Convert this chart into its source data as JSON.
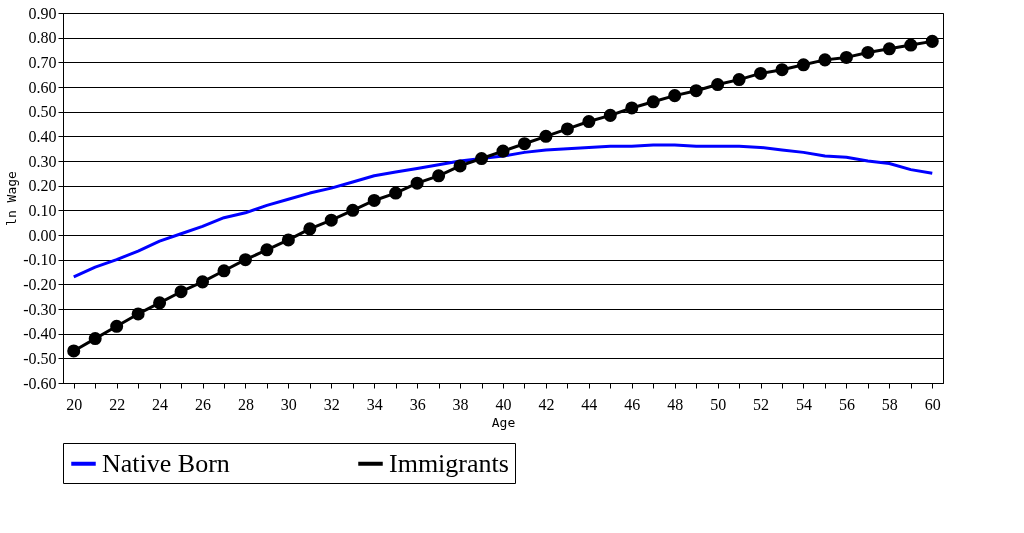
{
  "chart_data": {
    "type": "line",
    "xlabel": "Age",
    "ylabel": "ln Wage",
    "categories": [
      "20",
      null,
      "22",
      null,
      "24",
      null,
      "26",
      null,
      "28",
      null,
      "30",
      null,
      "32",
      null,
      "34",
      null,
      "36",
      null,
      "38",
      null,
      "40",
      null,
      "42",
      null,
      "44",
      null,
      "46",
      null,
      "48",
      null,
      "50",
      null,
      "52",
      null,
      "54",
      null,
      "56",
      null,
      "58",
      null,
      "60"
    ],
    "series": [
      {
        "name": "Native Born",
        "color": "#0000ff",
        "marker": "none",
        "values": [
          -0.17,
          -0.13,
          -0.1,
          -0.065,
          -0.025,
          0.005,
          0.035,
          0.07,
          0.09,
          0.12,
          0.145,
          0.17,
          0.19,
          0.215,
          0.24,
          0.255,
          0.27,
          0.285,
          0.3,
          0.31,
          0.32,
          0.335,
          0.345,
          0.35,
          0.355,
          0.36,
          0.36,
          0.365,
          0.365,
          0.36,
          0.36,
          0.36,
          0.355,
          0.345,
          0.335,
          0.32,
          0.315,
          0.3,
          0.29,
          0.265,
          0.25
        ]
      },
      {
        "name": "Immigrants",
        "color": "#000000",
        "marker": "circle",
        "values": [
          -0.47,
          -0.42,
          -0.37,
          -0.32,
          -0.275,
          -0.23,
          -0.19,
          -0.145,
          -0.1,
          -0.06,
          -0.02,
          0.025,
          0.06,
          0.1,
          0.14,
          0.17,
          0.21,
          0.24,
          0.28,
          0.31,
          0.34,
          0.37,
          0.4,
          0.43,
          0.46,
          0.485,
          0.515,
          0.54,
          0.565,
          0.585,
          0.61,
          0.63,
          0.655,
          0.67,
          0.69,
          0.71,
          0.72,
          0.74,
          0.755,
          0.77,
          0.785
        ]
      }
    ],
    "ylim": [
      -0.6,
      0.9
    ],
    "yticks": [
      {
        "value": -0.6,
        "label": "-0.60"
      },
      {
        "value": -0.5,
        "label": "-0.50"
      },
      {
        "value": -0.4,
        "label": "-0.40"
      },
      {
        "value": -0.3,
        "label": "-0.30"
      },
      {
        "value": -0.2,
        "label": "-0.20"
      },
      {
        "value": -0.1,
        "label": "-0.10"
      },
      {
        "value": 0,
        "label": "0.00"
      },
      {
        "value": 0.1,
        "label": "0.10"
      },
      {
        "value": 0.2,
        "label": "0.20"
      },
      {
        "value": 0.3,
        "label": "0.30"
      },
      {
        "value": 0.4,
        "label": "0.40"
      },
      {
        "value": 0.5,
        "label": "0.50"
      },
      {
        "value": 0.6,
        "label": "0.60"
      },
      {
        "value": 0.7,
        "label": "0.70"
      },
      {
        "value": 0.8,
        "label": "0.80"
      },
      {
        "value": 0.9,
        "label": "0.90"
      }
    ],
    "grid": "y",
    "legend": "bottom",
    "line_style": "solid"
  }
}
